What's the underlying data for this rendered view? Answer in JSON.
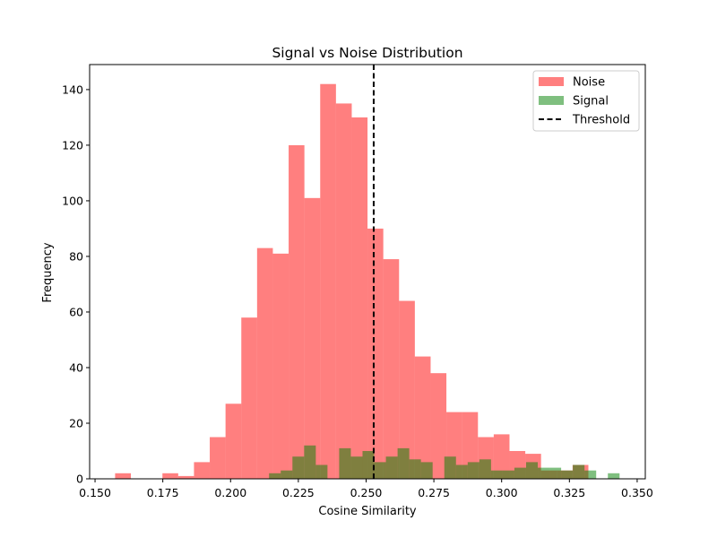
{
  "chart_data": {
    "type": "histogram",
    "title": "Signal vs Noise Distribution",
    "xlabel": "Cosine Similarity",
    "ylabel": "Frequency",
    "xlim": [
      0.148,
      0.353
    ],
    "ylim": [
      0,
      149
    ],
    "xticks": [
      0.15,
      0.175,
      0.2,
      0.225,
      0.25,
      0.275,
      0.3,
      0.325,
      0.35
    ],
    "xtick_labels": [
      "0.150",
      "0.175",
      "0.200",
      "0.225",
      "0.250",
      "0.275",
      "0.300",
      "0.325",
      "0.350"
    ],
    "yticks": [
      0,
      20,
      40,
      60,
      80,
      100,
      120,
      140
    ],
    "ytick_labels": [
      "0",
      "20",
      "40",
      "60",
      "80",
      "100",
      "120",
      "140"
    ],
    "grid": false,
    "legend_position": "top-right",
    "series": [
      {
        "name": "Noise",
        "color": "#ff0000",
        "alpha": 0.5,
        "bin_start": 0.1574,
        "bin_width": 0.00582,
        "counts": [
          2,
          0,
          0,
          2,
          1,
          6,
          15,
          27,
          58,
          83,
          81,
          120,
          101,
          142,
          135,
          130,
          90,
          79,
          64,
          44,
          38,
          24,
          24,
          15,
          16,
          10,
          9,
          3,
          3,
          5
        ]
      },
      {
        "name": "Signal",
        "color": "#008000",
        "alpha": 0.5,
        "bin_start": 0.2142,
        "bin_width": 0.00431,
        "counts": [
          2,
          3,
          8,
          12,
          5,
          0,
          11,
          8,
          10,
          6,
          8,
          11,
          7,
          6,
          0,
          8,
          5,
          6,
          7,
          3,
          3,
          4,
          6,
          4,
          4,
          3,
          5,
          3,
          0,
          2
        ]
      }
    ],
    "reference_lines": [
      {
        "name": "Threshold",
        "orientation": "vertical",
        "x": 0.2528,
        "color": "#000000",
        "style": "dashed"
      }
    ]
  }
}
